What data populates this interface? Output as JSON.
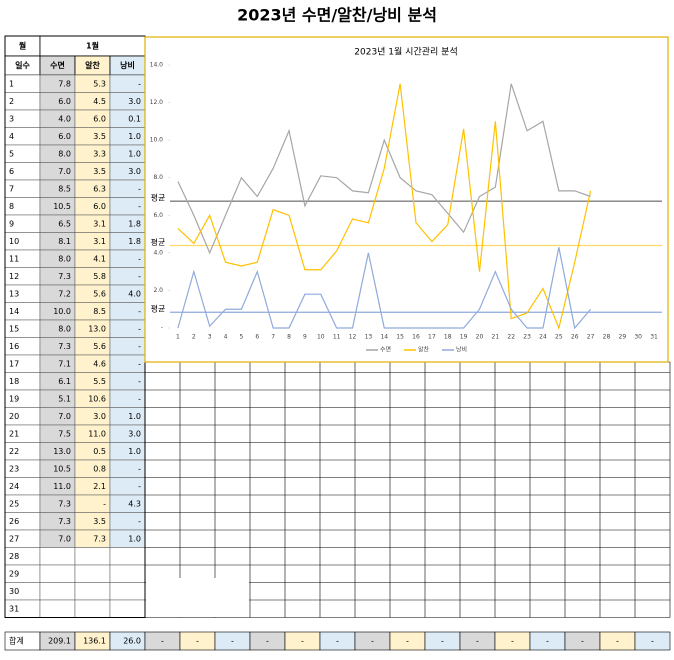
{
  "title": "2023년 수면/알찬/낭비 분석",
  "table": {
    "month_label": "월",
    "month": "1월",
    "headers": [
      "일수",
      "수면",
      "알찬",
      "낭비"
    ],
    "rows": [
      [
        "1",
        "7.8",
        "5.3",
        "-"
      ],
      [
        "2",
        "6.0",
        "4.5",
        "3.0"
      ],
      [
        "3",
        "4.0",
        "6.0",
        "0.1"
      ],
      [
        "4",
        "6.0",
        "3.5",
        "1.0"
      ],
      [
        "5",
        "8.0",
        "3.3",
        "1.0"
      ],
      [
        "6",
        "7.0",
        "3.5",
        "3.0"
      ],
      [
        "7",
        "8.5",
        "6.3",
        "-"
      ],
      [
        "8",
        "10.5",
        "6.0",
        "-"
      ],
      [
        "9",
        "6.5",
        "3.1",
        "1.8"
      ],
      [
        "10",
        "8.1",
        "3.1",
        "1.8"
      ],
      [
        "11",
        "8.0",
        "4.1",
        "-"
      ],
      [
        "12",
        "7.3",
        "5.8",
        "-"
      ],
      [
        "13",
        "7.2",
        "5.6",
        "4.0"
      ],
      [
        "14",
        "10.0",
        "8.5",
        "-"
      ],
      [
        "15",
        "8.0",
        "13.0",
        "-"
      ],
      [
        "16",
        "7.3",
        "5.6",
        "-"
      ],
      [
        "17",
        "7.1",
        "4.6",
        "-"
      ],
      [
        "18",
        "6.1",
        "5.5",
        "-"
      ],
      [
        "19",
        "5.1",
        "10.6",
        "-"
      ],
      [
        "20",
        "7.0",
        "3.0",
        "1.0"
      ],
      [
        "21",
        "7.5",
        "11.0",
        "3.0"
      ],
      [
        "22",
        "13.0",
        "0.5",
        "1.0"
      ],
      [
        "23",
        "10.5",
        "0.8",
        "-"
      ],
      [
        "24",
        "11.0",
        "2.1",
        "-"
      ],
      [
        "25",
        "7.3",
        "-",
        "4.3"
      ],
      [
        "26",
        "7.3",
        "3.5",
        "-"
      ],
      [
        "27",
        "7.0",
        "7.3",
        "1.0"
      ],
      [
        "28"
      ],
      [
        "29"
      ],
      [
        "30"
      ],
      [
        "31"
      ]
    ],
    "total": [
      "합계",
      "209.1",
      "136.1",
      "26.0"
    ],
    "total_extra": [
      "-",
      "-",
      "-",
      "-",
      "-",
      "-",
      "-",
      "-",
      "-",
      "-",
      "-",
      "-",
      "-",
      "-",
      "-"
    ]
  },
  "chart_data": {
    "type": "line",
    "title": "2023년 1월 시간관리 분석",
    "categories": [
      "1",
      "2",
      "3",
      "4",
      "5",
      "6",
      "7",
      "8",
      "9",
      "10",
      "11",
      "12",
      "13",
      "14",
      "15",
      "16",
      "17",
      "18",
      "19",
      "20",
      "21",
      "22",
      "23",
      "24",
      "25",
      "26",
      "27",
      "28",
      "29",
      "30",
      "31"
    ],
    "series": [
      {
        "name": "수면",
        "color": "#a6a6a6",
        "values": [
          7.8,
          6.0,
          4.0,
          6.0,
          8.0,
          7.0,
          8.5,
          10.5,
          6.5,
          8.1,
          8.0,
          7.3,
          7.2,
          10.0,
          8.0,
          7.3,
          7.1,
          6.1,
          5.1,
          7.0,
          7.5,
          13.0,
          10.5,
          11.0,
          7.3,
          7.3,
          7.0,
          null,
          null,
          null,
          null
        ]
      },
      {
        "name": "알찬",
        "color": "#ffc000",
        "values": [
          5.3,
          4.5,
          6.0,
          3.5,
          3.3,
          3.5,
          6.3,
          6.0,
          3.1,
          3.1,
          4.1,
          5.8,
          5.6,
          8.5,
          13.0,
          5.6,
          4.6,
          5.5,
          10.6,
          3.0,
          11.0,
          0.5,
          0.8,
          2.1,
          0,
          3.5,
          7.3,
          null,
          null,
          null,
          null
        ]
      },
      {
        "name": "낭비",
        "color": "#8faadc",
        "values": [
          0,
          3.0,
          0.1,
          1.0,
          1.0,
          3.0,
          0,
          0,
          1.8,
          1.8,
          0,
          0,
          4.0,
          0,
          0,
          0,
          0,
          0,
          0,
          1.0,
          3.0,
          1.0,
          0,
          0,
          4.3,
          0,
          1.0,
          null,
          null,
          null,
          null
        ]
      }
    ],
    "averages": [
      {
        "label": "평균",
        "value": 6.75,
        "color": "#7f7f7f"
      },
      {
        "label": "평균",
        "value": 4.39,
        "color": "#ffd966"
      },
      {
        "label": "평균",
        "value": 0.84,
        "color": "#8faadc"
      }
    ],
    "ylim": [
      0,
      14
    ],
    "yticks": [
      {
        "value": 0,
        "label": "-"
      },
      {
        "value": 2,
        "label": "2.0"
      },
      {
        "value": 4,
        "label": "4.0"
      },
      {
        "value": 6,
        "label": "6.0"
      },
      {
        "value": 8,
        "label": "8.0"
      },
      {
        "value": 10,
        "label": "10.0"
      },
      {
        "value": 12,
        "label": "12.0"
      },
      {
        "value": 14,
        "label": "14.0"
      }
    ],
    "legend": "bottom"
  }
}
